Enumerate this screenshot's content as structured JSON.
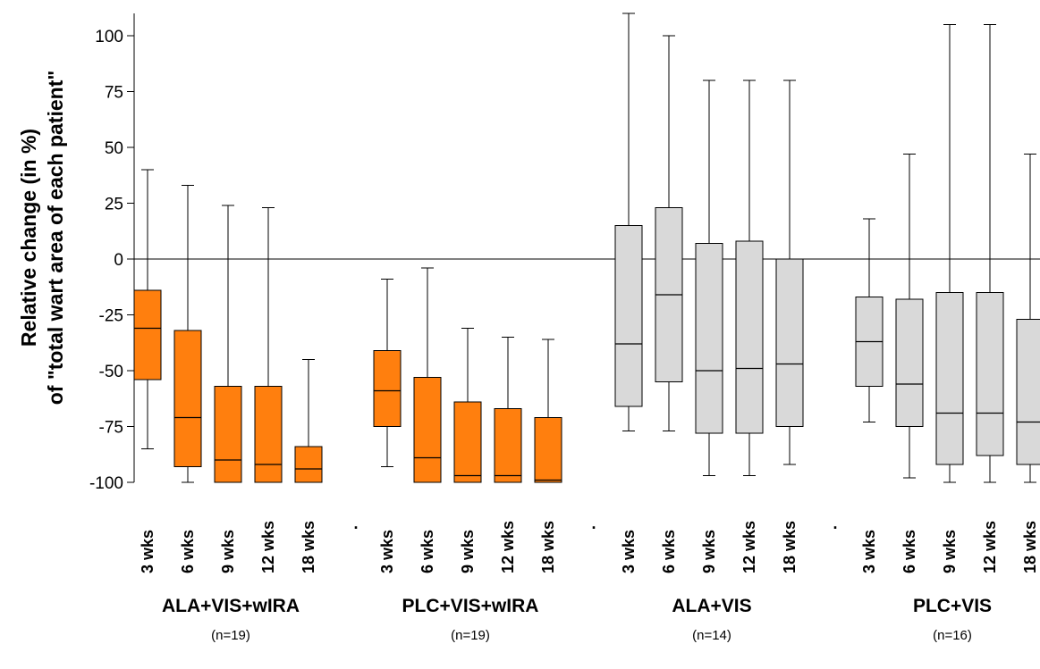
{
  "chart_data": {
    "type": "boxplot",
    "ylabel_line1": "Relative change (in %)",
    "ylabel_line2": "of \"total wart area of each patient\"",
    "ylim": [
      -100,
      110
    ],
    "yticks": [
      100,
      75,
      50,
      25,
      0,
      -25,
      -50,
      -75,
      -100
    ],
    "reference_line": 0,
    "colors": {
      "orange_fill": "#ff7f0e",
      "grey_fill": "#d9d9d9",
      "stroke": "#000000"
    },
    "groups": [
      {
        "name": "ALA+VIS+wIRA",
        "n_label": "(n=19)",
        "fill": "orange",
        "boxes": [
          {
            "label": "3 wks",
            "min": -85,
            "q1": -54,
            "median": -31,
            "q3": -14,
            "max": 40
          },
          {
            "label": "6 wks",
            "min": -100,
            "q1": -93,
            "median": -71,
            "q3": -32,
            "max": 33
          },
          {
            "label": "9 wks",
            "min": -100,
            "q1": -100,
            "median": -90,
            "q3": -57,
            "max": 24
          },
          {
            "label": "12 wks",
            "min": -100,
            "q1": -100,
            "median": -92,
            "q3": -57,
            "max": 23
          },
          {
            "label": "18 wks",
            "min": -100,
            "q1": -100,
            "median": -94,
            "q3": -84,
            "max": -45
          }
        ]
      },
      {
        "name": "PLC+VIS+wIRA",
        "n_label": "(n=19)",
        "fill": "orange",
        "boxes": [
          {
            "label": "3 wks",
            "min": -93,
            "q1": -75,
            "median": -59,
            "q3": -41,
            "max": -9
          },
          {
            "label": "6 wks",
            "min": -100,
            "q1": -100,
            "median": -89,
            "q3": -53,
            "max": -4
          },
          {
            "label": "9 wks",
            "min": -100,
            "q1": -100,
            "median": -97,
            "q3": -64,
            "max": -31
          },
          {
            "label": "12 wks",
            "min": -100,
            "q1": -100,
            "median": -97,
            "q3": -67,
            "max": -35
          },
          {
            "label": "18 wks",
            "min": -100,
            "q1": -100,
            "median": -99,
            "q3": -71,
            "max": -36
          }
        ]
      },
      {
        "name": "ALA+VIS",
        "n_label": "(n=14)",
        "fill": "grey",
        "boxes": [
          {
            "label": "3 wks",
            "min": -77,
            "q1": -66,
            "median": -38,
            "q3": 15,
            "max": 110
          },
          {
            "label": "6 wks",
            "min": -77,
            "q1": -55,
            "median": -16,
            "q3": 23,
            "max": 100
          },
          {
            "label": "9 wks",
            "min": -97,
            "q1": -78,
            "median": -50,
            "q3": 7,
            "max": 80
          },
          {
            "label": "12 wks",
            "min": -97,
            "q1": -78,
            "median": -49,
            "q3": 8,
            "max": 80
          },
          {
            "label": "18 wks",
            "min": -92,
            "q1": -75,
            "median": -47,
            "q3": 0,
            "max": 80
          }
        ]
      },
      {
        "name": "PLC+VIS",
        "n_label": "(n=16)",
        "fill": "grey",
        "boxes": [
          {
            "label": "3 wks",
            "min": -73,
            "q1": -57,
            "median": -37,
            "q3": -17,
            "max": 18
          },
          {
            "label": "6 wks",
            "min": -98,
            "q1": -75,
            "median": -56,
            "q3": -18,
            "max": 47
          },
          {
            "label": "9 wks",
            "min": -100,
            "q1": -92,
            "median": -69,
            "q3": -15,
            "max": 105
          },
          {
            "label": "12 wks",
            "min": -100,
            "q1": -88,
            "median": -69,
            "q3": -15,
            "max": 105
          },
          {
            "label": "18 wks",
            "min": -100,
            "q1": -92,
            "median": -73,
            "q3": -27,
            "max": 47
          }
        ]
      }
    ],
    "group_separator_mark": "."
  }
}
